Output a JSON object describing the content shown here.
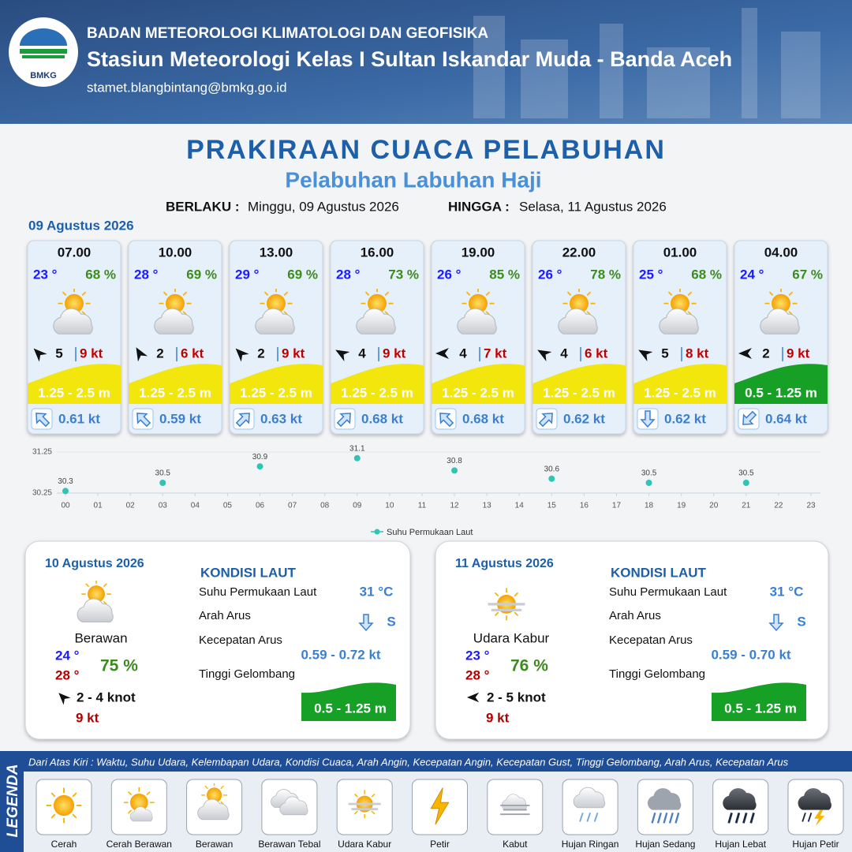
{
  "header": {
    "logo_text": "BMKG",
    "agency": "BADAN METEOROLOGI KLIMATOLOGI DAN GEOFISIKA",
    "station": "Stasiun Meteorologi Kelas I Sultan Iskandar Muda - Banda Aceh",
    "email": "stamet.blangbintang@bmkg.go.id"
  },
  "title": "PRAKIRAAN CUACA PELABUHAN",
  "subtitle": "Pelabuhan Labuhan Haji",
  "validity": {
    "from_label": "BERLAKU :",
    "from": "Minggu, 09 Agustus 2026",
    "until_label": "HINGGA :",
    "until": "Selasa, 11 Agustus 2026"
  },
  "day1_date": "09 Agustus 2026",
  "forecasts": [
    {
      "time": "07.00",
      "temp": "23 °",
      "humidity": "68 %",
      "wind_dir_deg": 315,
      "wind": "5",
      "gust": "9 kt",
      "wave": "1.25 - 2.5 m",
      "wave_color": "#f2e60c",
      "current_dir_deg": 315,
      "current": "0.61 kt"
    },
    {
      "time": "10.00",
      "temp": "28 °",
      "humidity": "69 %",
      "wind_dir_deg": 330,
      "wind": "2",
      "gust": "6 kt",
      "wave": "1.25 - 2.5 m",
      "wave_color": "#f2e60c",
      "current_dir_deg": 315,
      "current": "0.59 kt"
    },
    {
      "time": "13.00",
      "temp": "29 °",
      "humidity": "69 %",
      "wind_dir_deg": 315,
      "wind": "2",
      "gust": "9 kt",
      "wave": "1.25 - 2.5 m",
      "wave_color": "#f2e60c",
      "current_dir_deg": 45,
      "current": "0.63 kt"
    },
    {
      "time": "16.00",
      "temp": "28 °",
      "humidity": "73 %",
      "wind_dir_deg": 300,
      "wind": "4",
      "gust": "9 kt",
      "wave": "1.25 - 2.5 m",
      "wave_color": "#f2e60c",
      "current_dir_deg": 45,
      "current": "0.68 kt"
    },
    {
      "time": "19.00",
      "temp": "26 °",
      "humidity": "85 %",
      "wind_dir_deg": 270,
      "wind": "4",
      "gust": "7 kt",
      "wave": "1.25 - 2.5 m",
      "wave_color": "#f2e60c",
      "current_dir_deg": 315,
      "current": "0.68 kt"
    },
    {
      "time": "22.00",
      "temp": "26 °",
      "humidity": "78 %",
      "wind_dir_deg": 300,
      "wind": "4",
      "gust": "6 kt",
      "wave": "1.25 - 2.5 m",
      "wave_color": "#f2e60c",
      "current_dir_deg": 45,
      "current": "0.62 kt"
    },
    {
      "time": "01.00",
      "temp": "25 °",
      "humidity": "68 %",
      "wind_dir_deg": 300,
      "wind": "5",
      "gust": "8 kt",
      "wave": "1.25 - 2.5 m",
      "wave_color": "#f2e60c",
      "current_dir_deg": 180,
      "current": "0.62 kt"
    },
    {
      "time": "04.00",
      "temp": "24 °",
      "humidity": "67 %",
      "wind_dir_deg": 270,
      "wind": "2",
      "gust": "9 kt",
      "wave": "0.5 - 1.25 m",
      "wave_color": "#16a025",
      "current_dir_deg": 225,
      "current": "0.64 kt"
    }
  ],
  "chart_data": {
    "type": "scatter",
    "x": [
      0,
      3,
      6,
      9,
      12,
      15,
      18,
      21
    ],
    "series": [
      {
        "name": "Suhu Permukaan Laut",
        "color": "#2ec4b6",
        "values": [
          30.3,
          30.5,
          30.9,
          31.1,
          30.8,
          30.6,
          30.5,
          30.5
        ]
      }
    ],
    "xlim": [
      0,
      23
    ],
    "xticks": [
      {
        "value": 0,
        "label": "00"
      },
      {
        "value": 1,
        "label": "01"
      },
      {
        "value": 2,
        "label": "02"
      },
      {
        "value": 3,
        "label": "03"
      },
      {
        "value": 4,
        "label": "04"
      },
      {
        "value": 5,
        "label": "05"
      },
      {
        "value": 6,
        "label": "06"
      },
      {
        "value": 7,
        "label": "07"
      },
      {
        "value": 8,
        "label": "08"
      },
      {
        "value": 9,
        "label": "09"
      },
      10,
      11,
      12,
      13,
      14,
      15,
      16,
      17,
      18,
      19,
      20,
      21,
      22,
      23
    ],
    "ylim": [
      30.25,
      31.25
    ],
    "yticks": [
      30.25,
      31.25
    ],
    "grid": true,
    "legend": "bottom"
  },
  "days": [
    {
      "date": "10 Agustus 2026",
      "condition": "Berawan",
      "icon": "suncloud",
      "temp_min": "24 °",
      "temp_max": "28 °",
      "humidity": "75 %",
      "wind_dir_deg": 315,
      "wind": "2  - 4 knot",
      "gust": "9 kt",
      "sea_title": "KONDISI LAUT",
      "sst_label": "Suhu Permukaan Laut",
      "sst": "31 °C",
      "current_dir_label": "Arah Arus",
      "current_dir_deg": 180,
      "current_dir": "S",
      "current_speed_label": "Kecepatan Arus",
      "current_speed": "0.59  - 0.72 kt",
      "wave_label": "Tinggi Gelombang",
      "wave": "0.5 - 1.25 m",
      "wave_color": "#16a025"
    },
    {
      "date": "11 Agustus 2026",
      "condition": "Udara Kabur",
      "icon": "haze",
      "temp_min": "23 °",
      "temp_max": "28 °",
      "humidity": "76 %",
      "wind_dir_deg": 270,
      "wind": "2  - 5 knot",
      "gust": "9 kt",
      "sea_title": "KONDISI LAUT",
      "sst_label": "Suhu Permukaan Laut",
      "sst": "31 °C",
      "current_dir_label": "Arah Arus",
      "current_dir_deg": 180,
      "current_dir": "S",
      "current_speed_label": "Kecepatan Arus",
      "current_speed": "0.59 - 0.70 kt",
      "wave_label": "Tinggi Gelombang",
      "wave": "0.5 - 1.25 m",
      "wave_color": "#16a025"
    }
  ],
  "legend": {
    "title": "LEGENDA",
    "description": "Dari Atas Kiri : Waktu, Suhu Udara, Kelembapan Udara, Kondisi Cuaca, Arah Angin, Kecepatan Angin, Kecepatan Gust, Tinggi Gelombang, Arah Arus, Kecepatan Arus",
    "items": [
      "Cerah",
      "Cerah Berawan",
      "Berawan",
      "Berawan Tebal",
      "Udara Kabur",
      "Petir",
      "Kabut",
      "Hujan Ringan",
      "Hujan Sedang",
      "Hujan Lebat",
      "Hujan Petir"
    ]
  }
}
